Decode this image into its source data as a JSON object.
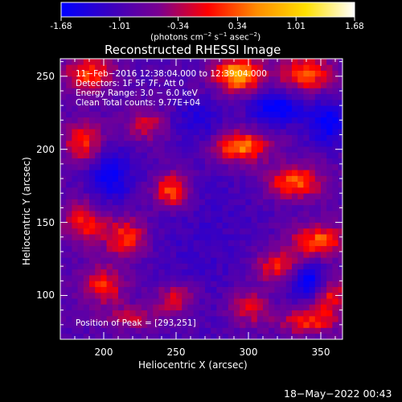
{
  "colorbar": {
    "ticks": [
      "-1.68",
      "-1.01",
      "-0.34",
      "0.34",
      "1.01",
      "1.68"
    ],
    "tick_values": [
      -1.68,
      -1.01,
      -0.34,
      0.34,
      1.01,
      1.68
    ],
    "range": [
      -1.68,
      1.68
    ],
    "units_main": "(photons cm",
    "units_exp1": "−2",
    "units_mid": " s",
    "units_exp2": "−1",
    "units_mid2": " asec",
    "units_exp3": "−2",
    "units_end": ")",
    "colors": [
      "#0000ff",
      "#3a00c0",
      "#7a0090",
      "#ff0000",
      "#ff8c00",
      "#ffe000",
      "#ffffff"
    ]
  },
  "chart_data": {
    "type": "heatmap",
    "title": "Reconstructed RHESSI Image",
    "xlabel": "Heliocentric X (arcsec)",
    "ylabel": "Heliocentric Y (arcsec)",
    "xlim": [
      170,
      365
    ],
    "ylim": [
      70,
      262
    ],
    "x_ticks": [
      "200",
      "250",
      "300",
      "350"
    ],
    "x_tick_values": [
      200,
      250,
      300,
      350
    ],
    "y_ticks": [
      "100",
      "150",
      "200",
      "250"
    ],
    "y_tick_values": [
      100,
      150,
      200,
      250
    ],
    "info_lines": [
      "11−Feb−2016 12:38:04.000 to 12:39:04.000",
      "Detectors: 1F 5F 7F, Att 0",
      "Energy Range: 3.0 − 6.0 keV",
      "Clean     Total counts: 9.77E+04"
    ],
    "peak_label": "Position of Peak = [293,251]",
    "peak": [
      293,
      251
    ],
    "grid_step_arcsec": 4,
    "sources": [
      {
        "x": 293,
        "y": 251,
        "amp": 1.68,
        "sx": 12,
        "sy": 8
      },
      {
        "x": 190,
        "y": 252,
        "amp": 1.15,
        "sx": 12,
        "sy": 9
      },
      {
        "x": 340,
        "y": 252,
        "amp": 1.2,
        "sx": 13,
        "sy": 9
      },
      {
        "x": 294,
        "y": 202,
        "amp": 1.45,
        "sx": 14,
        "sy": 8
      },
      {
        "x": 230,
        "y": 217,
        "amp": 0.8,
        "sx": 10,
        "sy": 8
      },
      {
        "x": 186,
        "y": 205,
        "amp": 1.0,
        "sx": 10,
        "sy": 10
      },
      {
        "x": 186,
        "y": 150,
        "amp": 1.0,
        "sx": 10,
        "sy": 10
      },
      {
        "x": 247,
        "y": 172,
        "amp": 1.3,
        "sx": 9,
        "sy": 9
      },
      {
        "x": 332,
        "y": 178,
        "amp": 1.3,
        "sx": 14,
        "sy": 8
      },
      {
        "x": 348,
        "y": 138,
        "amp": 1.2,
        "sx": 14,
        "sy": 8
      },
      {
        "x": 320,
        "y": 120,
        "amp": 1.0,
        "sx": 12,
        "sy": 8
      },
      {
        "x": 215,
        "y": 140,
        "amp": 1.1,
        "sx": 11,
        "sy": 10
      },
      {
        "x": 200,
        "y": 107,
        "amp": 1.0,
        "sx": 11,
        "sy": 9
      },
      {
        "x": 250,
        "y": 98,
        "amp": 0.9,
        "sx": 10,
        "sy": 8
      },
      {
        "x": 356,
        "y": 100,
        "amp": 1.0,
        "sx": 10,
        "sy": 10
      },
      {
        "x": 300,
        "y": 92,
        "amp": 0.9,
        "sx": 10,
        "sy": 9
      },
      {
        "x": 220,
        "y": 85,
        "amp": 0.7,
        "sx": 14,
        "sy": 6
      },
      {
        "x": 340,
        "y": 82,
        "amp": 1.0,
        "sx": 14,
        "sy": 6
      },
      {
        "x": 270,
        "y": 140,
        "amp": -0.3,
        "sx": 30,
        "sy": 40
      },
      {
        "x": 342,
        "y": 110,
        "amp": -1.4,
        "sx": 8,
        "sy": 8
      },
      {
        "x": 320,
        "y": 228,
        "amp": -1.2,
        "sx": 12,
        "sy": 8
      },
      {
        "x": 355,
        "y": 218,
        "amp": -1.1,
        "sx": 10,
        "sy": 10
      },
      {
        "x": 205,
        "y": 182,
        "amp": -1.0,
        "sx": 10,
        "sy": 12
      },
      {
        "x": 265,
        "y": 220,
        "amp": -0.6,
        "sx": 12,
        "sy": 10
      }
    ]
  },
  "timestamp": "18−May−2022 00:43"
}
